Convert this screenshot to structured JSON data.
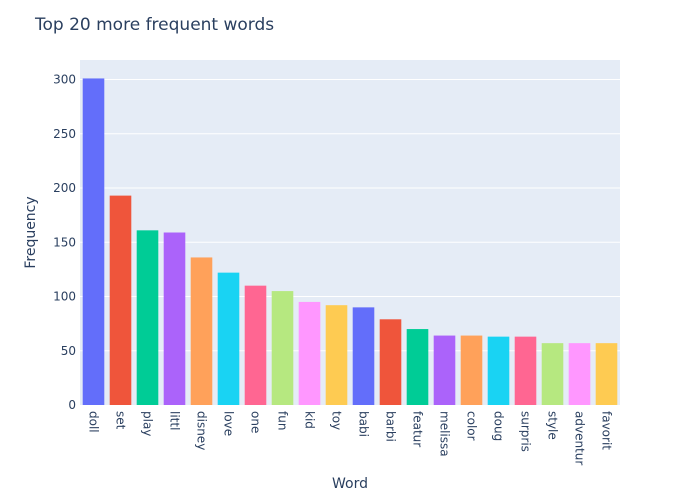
{
  "chart_data": {
    "type": "bar",
    "title": "Top 20 more frequent words",
    "xlabel": "Word",
    "ylabel": "Frequency",
    "categories": [
      "doll",
      "set",
      "play",
      "littl",
      "disney",
      "love",
      "one",
      "fun",
      "kid",
      "toy",
      "babi",
      "barbi",
      "featur",
      "melissa",
      "color",
      "doug",
      "surpris",
      "style",
      "adventur",
      "favorit"
    ],
    "values": [
      301,
      193,
      161,
      159,
      136,
      122,
      110,
      105,
      95,
      92,
      90,
      79,
      70,
      64,
      64,
      63,
      63,
      57,
      57,
      57
    ],
    "ylim": [
      0,
      318
    ],
    "yticks": [
      0,
      50,
      100,
      150,
      200,
      250,
      300
    ],
    "grid": true,
    "colors": [
      "#636efa",
      "#EF553B",
      "#00cc96",
      "#ab63fa",
      "#FFA15A",
      "#19d3f3",
      "#FF6692",
      "#B6E880",
      "#FF97FF",
      "#FECB52"
    ],
    "background": "#e5ecf6"
  }
}
